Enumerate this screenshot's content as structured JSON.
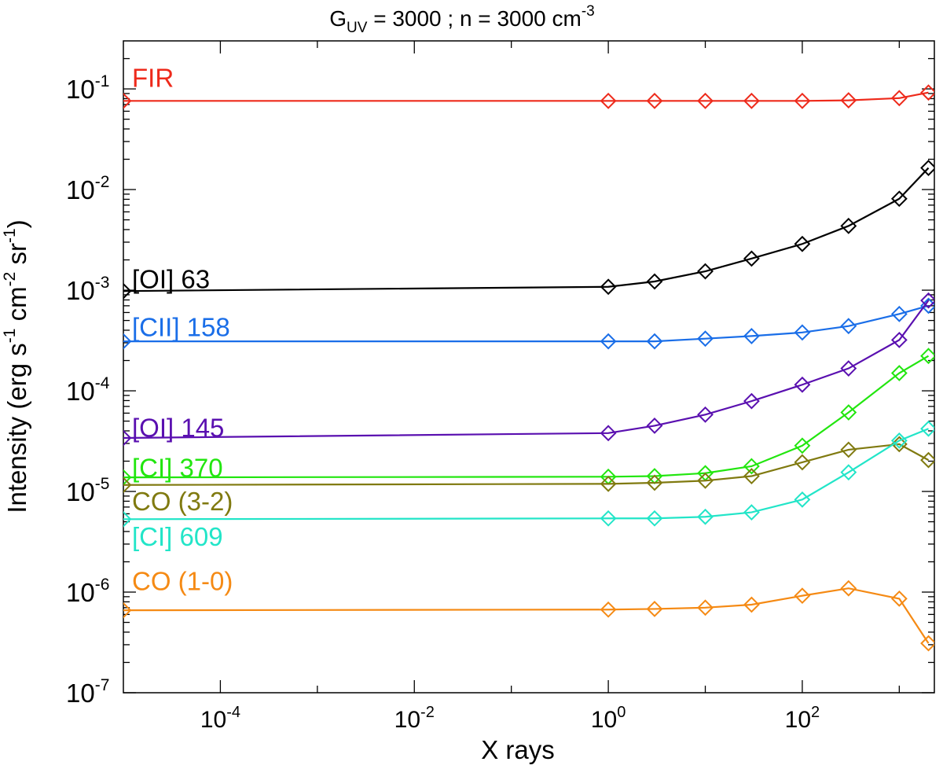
{
  "chart_data": {
    "type": "line",
    "title": {
      "base": "G",
      "sub": "UV",
      "mid": " = 3000 ; n = 3000 cm",
      "sup": "-3"
    },
    "xlabel": "X rays",
    "ylabel": {
      "p1": "Intensity (erg s",
      "s1": "-1",
      "p2": " cm",
      "s2": "-2",
      "p3": " sr",
      "s3": "-1",
      "p4": ")"
    },
    "x_scale": "log",
    "y_scale": "log",
    "xlim": [
      1e-05,
      2300
    ],
    "ylim": [
      1e-07,
      0.3
    ],
    "x_ticks": [
      {
        "value": 0.0001,
        "base": "10",
        "exp": "-4"
      },
      {
        "value": 0.01,
        "base": "10",
        "exp": "-2"
      },
      {
        "value": 1,
        "base": "10",
        "exp": "0"
      },
      {
        "value": 100,
        "base": "10",
        "exp": "2"
      }
    ],
    "y_ticks": [
      {
        "value": 1e-07,
        "base": "10",
        "exp": "-7"
      },
      {
        "value": 1e-06,
        "base": "10",
        "exp": "-6"
      },
      {
        "value": 1e-05,
        "base": "10",
        "exp": "-5"
      },
      {
        "value": 0.0001,
        "base": "10",
        "exp": "-4"
      },
      {
        "value": 0.001,
        "base": "10",
        "exp": "-3"
      },
      {
        "value": 0.01,
        "base": "10",
        "exp": "-2"
      },
      {
        "value": 0.1,
        "base": "10",
        "exp": "-1"
      }
    ],
    "grid": false,
    "legend": "inline labels at left of each series",
    "x": [
      1e-05,
      1,
      3,
      10,
      30,
      100,
      300,
      1000,
      2000
    ],
    "series": [
      {
        "name": "FIR",
        "color": "#ee2a1b",
        "label_y": 0.105,
        "values": [
          0.076,
          0.076,
          0.076,
          0.076,
          0.076,
          0.076,
          0.077,
          0.081,
          0.092
        ]
      },
      {
        "name": "[OI] 63",
        "color": "#000000",
        "label_y": 0.00105,
        "values": [
          0.00098,
          0.00108,
          0.00122,
          0.00154,
          0.00206,
          0.00288,
          0.00435,
          0.0081,
          0.0164
        ]
      },
      {
        "name": "[CII] 158",
        "color": "#1a6ee8",
        "label_y": 0.00035,
        "values": [
          0.00031,
          0.00031,
          0.00031,
          0.00033,
          0.00035,
          0.00038,
          0.00044,
          0.00058,
          0.0007
        ]
      },
      {
        "name": "[OI] 145",
        "color": "#5a10b0",
        "label_y": 3.5e-05,
        "values": [
          3.4e-05,
          3.8e-05,
          4.5e-05,
          5.8e-05,
          7.9e-05,
          0.000115,
          0.000167,
          0.00032,
          0.00079
        ]
      },
      {
        "name": "[CI] 370",
        "color": "#22e60f",
        "label_y": 1.4e-05,
        "values": [
          1.38e-05,
          1.4e-05,
          1.42e-05,
          1.52e-05,
          1.78e-05,
          2.85e-05,
          6.1e-05,
          0.00015,
          0.000222
        ]
      },
      {
        "name": "CO (3-2)",
        "color": "#807a10",
        "label_y": 6.5e-06,
        "values": [
          1.16e-05,
          1.19e-05,
          1.22e-05,
          1.28e-05,
          1.42e-05,
          1.95e-05,
          2.6e-05,
          2.95e-05,
          2.05e-05
        ]
      },
      {
        "name": "[CI] 609",
        "color": "#22e5c8",
        "label_y": 2.9e-06,
        "values": [
          5.3e-06,
          5.4e-06,
          5.4e-06,
          5.6e-06,
          6.2e-06,
          8.3e-06,
          1.55e-05,
          3.2e-05,
          4.2e-05
        ]
      },
      {
        "name": "CO (1-0)",
        "color": "#f58a14",
        "label_y": 1.05e-06,
        "values": [
          6.6e-07,
          6.7e-07,
          6.8e-07,
          7e-07,
          7.5e-07,
          9.2e-07,
          1.09e-06,
          8.6e-07,
          3.1e-07
        ]
      }
    ]
  }
}
